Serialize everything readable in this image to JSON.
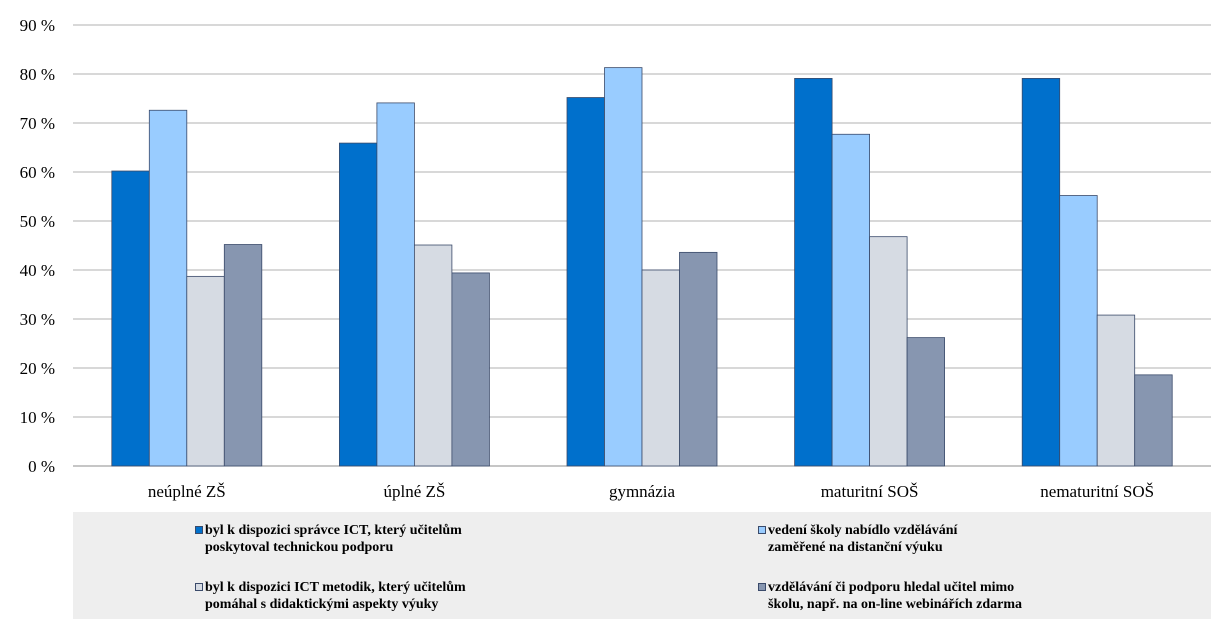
{
  "chart_data": {
    "type": "bar",
    "categories": [
      "neúplné ZŠ",
      "úplné ZŠ",
      "gymnázia",
      "maturitní SOŠ",
      "nematuritní SOŠ"
    ],
    "ylim": [
      0,
      90
    ],
    "yticks": [
      "0 %",
      "10 %",
      "20 %",
      "30 %",
      "40 %",
      "50 %",
      "60 %",
      "70 %",
      "80 %",
      "90 %"
    ],
    "grid": true,
    "legend_position": "bottom",
    "series": [
      {
        "name": "byl k dispozici správce ICT, který učitelům poskytoval technickou podporu",
        "name_lines": [
          "byl k dispozici správce ICT, který učitelům",
          "poskytoval technickou podporu"
        ],
        "color": "#0070cc",
        "values": [
          60.2,
          65.9,
          75.2,
          79.1,
          79.1
        ]
      },
      {
        "name": "vedení školy nabídlo vzdělávání zaměřené na distanční výuku",
        "name_lines": [
          "vedení školy nabídlo vzdělávání",
          "zaměřené na distanční výuku"
        ],
        "color": "#99ccff",
        "values": [
          72.6,
          74.1,
          81.3,
          67.7,
          55.2
        ]
      },
      {
        "name": "byl k dispozici ICT metodik, který učitelům pomáhal s didaktickými aspekty výuky",
        "name_lines": [
          "byl k dispozici ICT metodik, který učitelům",
          "pomáhal s didaktickými aspekty výuky"
        ],
        "color": "#d6dbe3",
        "values": [
          38.7,
          45.1,
          40.0,
          46.8,
          30.8
        ]
      },
      {
        "name": "vzdělávání či podporu hledal učitel mimo školu, např. na on-line webinářích zdarma",
        "name_lines": [
          "vzdělávání či podporu hledal učitel mimo",
          "školu, např. na on-line webinářích zdarma"
        ],
        "color": "#8796b0",
        "values": [
          45.2,
          39.4,
          43.6,
          26.2,
          18.6
        ]
      }
    ]
  }
}
